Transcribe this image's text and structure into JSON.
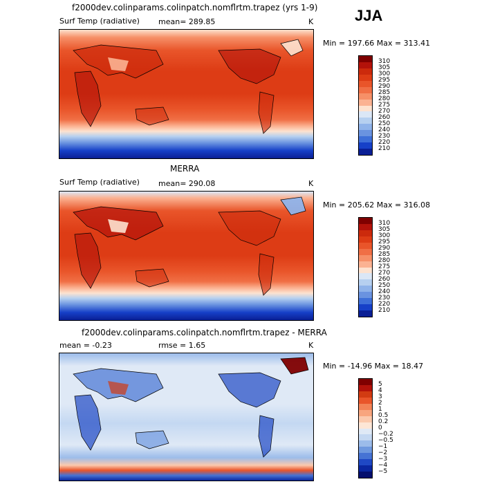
{
  "season": "JJA",
  "panels": [
    {
      "title": "f2000dev.colinparams.colinpatch.nomflrtm.trapez (yrs 1-9)",
      "left_label": "Surf Temp (radiative)",
      "mean_label": "mean= 289.85",
      "units": "K",
      "minmax": "Min = 197.66 Max = 313.41",
      "colorbar_labels": [
        "310",
        "305",
        "300",
        "295",
        "290",
        "285",
        "280",
        "275",
        "270",
        "260",
        "250",
        "240",
        "230",
        "220",
        "210"
      ]
    },
    {
      "title": "MERRA",
      "left_label": "Surf Temp (radiative)",
      "mean_label": "mean= 290.08",
      "units": "K",
      "minmax": "Min = 205.62 Max = 316.08",
      "colorbar_labels": [
        "310",
        "305",
        "300",
        "295",
        "290",
        "285",
        "280",
        "275",
        "270",
        "260",
        "250",
        "240",
        "230",
        "220",
        "210"
      ]
    },
    {
      "title": "f2000dev.colinparams.colinpatch.nomflrtm.trapez - MERRA",
      "left_label": "mean =   -0.23",
      "mean_label": "rmse =    1.65",
      "units": "K",
      "minmax": "Min = -14.96 Max =  18.47",
      "colorbar_labels": [
        "5",
        "4",
        "3",
        "2",
        "1",
        "0.5",
        "0.2",
        "0",
        "−0.2",
        "−0.5",
        "−1",
        "−2",
        "−3",
        "−4",
        "−5"
      ]
    }
  ],
  "colors": {
    "temp_scale": [
      "#7f0000",
      "#b3120a",
      "#cc2a0c",
      "#dd3c15",
      "#e9552a",
      "#f06f45",
      "#f69068",
      "#fbb292",
      "#fde2cf",
      "#dbe7f6",
      "#b6d0f0",
      "#8fb3ea",
      "#6a93e0",
      "#3e6fd8",
      "#1640c8",
      "#0a1f95"
    ],
    "diff_scale": [
      "#7f0000",
      "#b3120a",
      "#d23b12",
      "#e9552a",
      "#f38357",
      "#f8a57e",
      "#fbc9ad",
      "#fde6d6",
      "#dfe9f6",
      "#c4d8f2",
      "#9cbcea",
      "#6f99df",
      "#4673d4",
      "#1f48c4",
      "#0a26a0",
      "#050f6e"
    ]
  }
}
